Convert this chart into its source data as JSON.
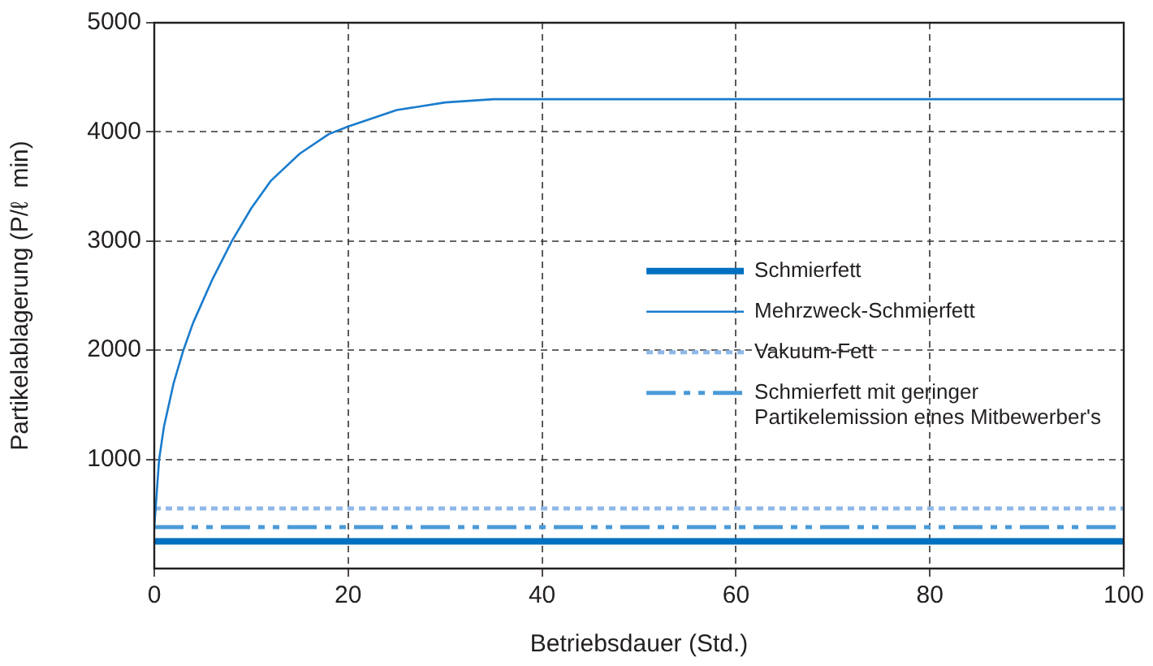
{
  "chart_data": {
    "type": "line",
    "xlabel": "Betriebsdauer (Std.)",
    "ylabel": "Partikelablagerung (P/ℓ  min)",
    "xlim": [
      0,
      100
    ],
    "xticks": [
      0,
      20,
      40,
      60,
      80,
      100
    ],
    "ylim": [
      0,
      5000
    ],
    "yticks": [
      1000,
      2000,
      3000,
      4000,
      5000
    ],
    "grid": true,
    "legend": "right",
    "marker": "none",
    "series": [
      {
        "name": "Schmierfett",
        "color": "#0070c0",
        "line_style": "solid",
        "x": [
          0,
          100
        ],
        "values": [
          250,
          250
        ]
      },
      {
        "name": "Mehrzweck-Schmierfett",
        "color": "#1a7ccc",
        "line_style": "solid",
        "x": [
          0,
          0.5,
          1,
          2,
          3,
          4,
          6,
          8,
          10,
          12,
          15,
          18,
          20,
          25,
          30,
          35,
          40,
          100
        ],
        "values": [
          380,
          1000,
          1300,
          1700,
          2000,
          2250,
          2650,
          3000,
          3300,
          3550,
          3800,
          3980,
          4050,
          4200,
          4270,
          4300,
          4300,
          4300
        ]
      },
      {
        "name": "Vakuum-Fett",
        "color": "#8fb8e8",
        "line_style": "dotted",
        "x": [
          0,
          100
        ],
        "values": [
          550,
          550
        ]
      },
      {
        "name": "Schmierfett mit geringer Partikelemission eines Mitbewerber's",
        "color": "#4a9ad8",
        "line_style": "dashdot",
        "x": [
          0,
          100
        ],
        "values": [
          380,
          380
        ]
      }
    ]
  }
}
